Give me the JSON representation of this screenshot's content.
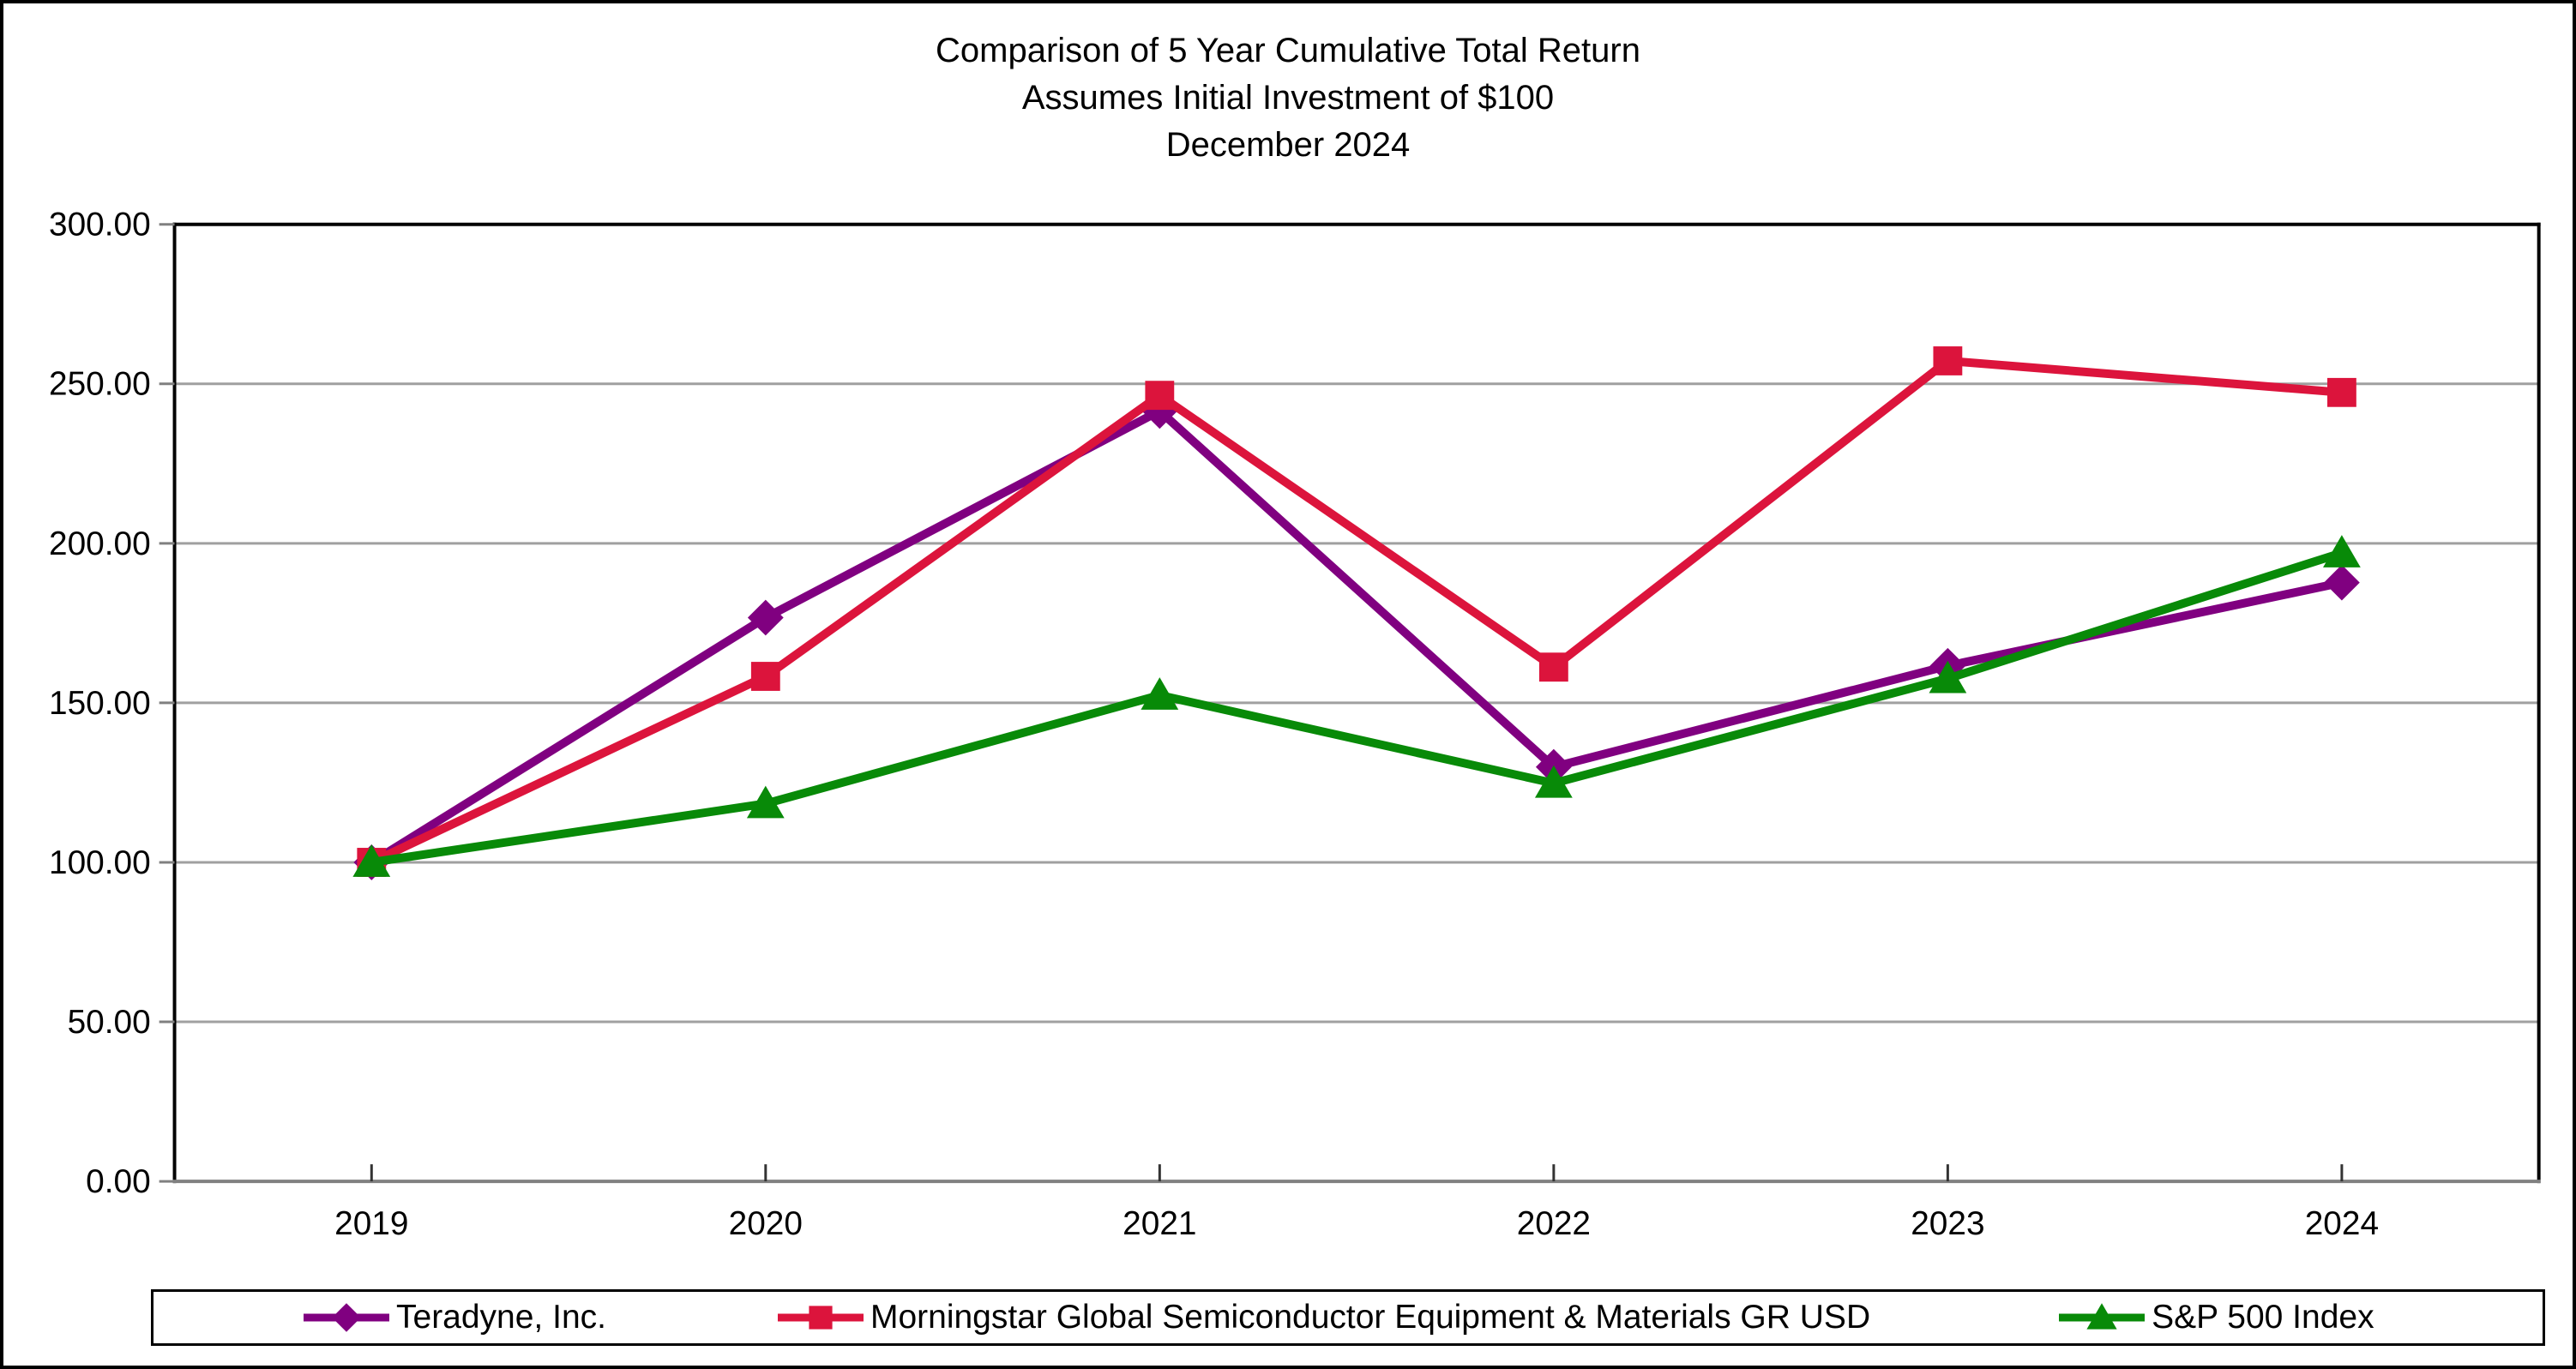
{
  "chart_data": {
    "type": "line",
    "title_lines": [
      "Comparison of 5 Year Cumulative Total Return",
      "Assumes Initial Investment of $100",
      "December 2024"
    ],
    "categories": [
      "2019",
      "2020",
      "2021",
      "2022",
      "2023",
      "2024"
    ],
    "series": [
      {
        "name": "Teradyne, Inc.",
        "marker": "diamond",
        "color": "#800080",
        "values": [
          100.0,
          176.7,
          241.5,
          129.9,
          161.6,
          187.7
        ]
      },
      {
        "name": "Morningstar Global Semiconductor Equipment & Materials GR USD",
        "marker": "square",
        "color": "#DC143C",
        "values": [
          100.0,
          158.3,
          246.4,
          161.2,
          257.2,
          247.3
        ]
      },
      {
        "name": "S&P 500 Index",
        "marker": "triangle",
        "color": "#088A08",
        "values": [
          100.0,
          118.4,
          152.4,
          124.8,
          157.6,
          197.0
        ]
      }
    ],
    "ylim": [
      0,
      300
    ],
    "ytick_step": 50,
    "ytick_label_format": "two_decimals",
    "grid": true,
    "legend_position": "bottom",
    "colors": {
      "gridline": "#A0A0A0",
      "plot_border": "#000000",
      "bottom_axis": "#808080",
      "left_tick": "#808080",
      "bottom_tick": "#333333",
      "text": "#000000",
      "background": "#FFFFFF"
    }
  }
}
